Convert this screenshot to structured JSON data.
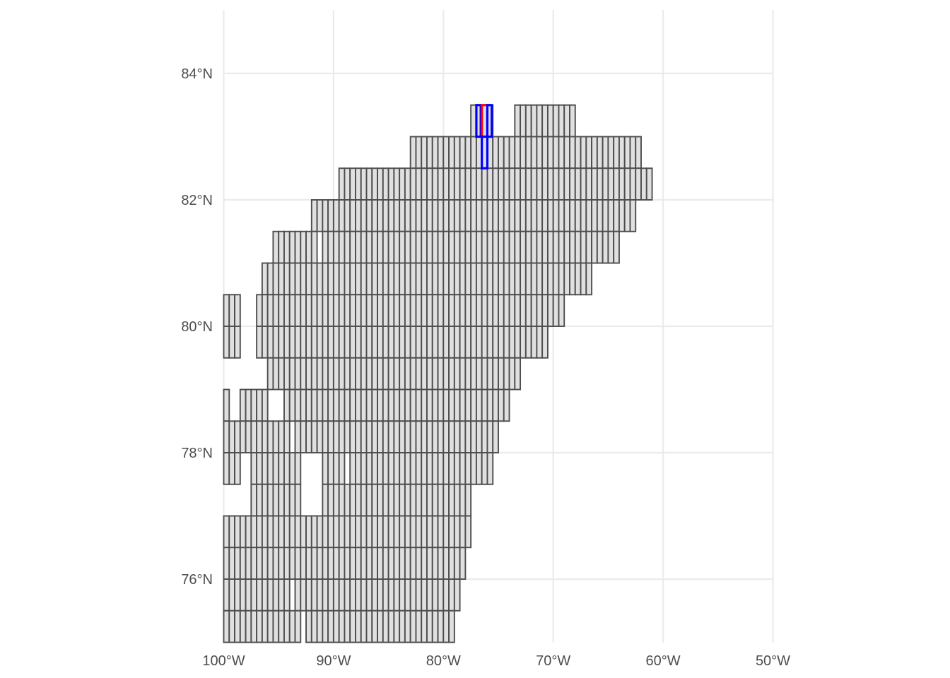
{
  "map": {
    "projection": "equirectangular",
    "lon_range": [
      -100,
      -50
    ],
    "lat_range": [
      75,
      85
    ],
    "x_ticks": [
      {
        "lon": -100,
        "label": "100°W"
      },
      {
        "lon": -90,
        "label": "90°W"
      },
      {
        "lon": -80,
        "label": "80°W"
      },
      {
        "lon": -70,
        "label": "70°W"
      },
      {
        "lon": -60,
        "label": "60°W"
      },
      {
        "lon": -50,
        "label": "50°W"
      }
    ],
    "y_ticks": [
      {
        "lat": 76,
        "label": "76°N"
      },
      {
        "lat": 78,
        "label": "78°N"
      },
      {
        "lat": 80,
        "label": "80°N"
      },
      {
        "lat": 82,
        "label": "82°N"
      },
      {
        "lat": 84,
        "label": "84°N"
      }
    ],
    "grid": true,
    "cell_lon_width": 0.5,
    "band_lat_height": 0.5,
    "colors": {
      "grid": "#ebebeb",
      "cell_fill": "#e0e0e0",
      "cell_stroke": "#4d4d4d",
      "highlight_blue": "#0000ff",
      "highlight_red": "#ff0000"
    },
    "bands": [
      {
        "lat_min": 83.0,
        "lat_max": 83.5,
        "lon_ranges": [
          [
            -77.5,
            -75.5
          ],
          [
            -73.5,
            -68.0
          ]
        ]
      },
      {
        "lat_min": 82.5,
        "lat_max": 83.0,
        "lon_ranges": [
          [
            -83.0,
            -62.0
          ]
        ]
      },
      {
        "lat_min": 82.0,
        "lat_max": 82.5,
        "lon_ranges": [
          [
            -89.5,
            -61.0
          ]
        ]
      },
      {
        "lat_min": 81.5,
        "lat_max": 82.0,
        "lon_ranges": [
          [
            -92.0,
            -62.5
          ]
        ]
      },
      {
        "lat_min": 81.0,
        "lat_max": 81.5,
        "lon_ranges": [
          [
            -95.5,
            -91.5
          ],
          [
            -91.0,
            -64.0
          ]
        ]
      },
      {
        "lat_min": 80.5,
        "lat_max": 81.0,
        "lon_ranges": [
          [
            -96.5,
            -66.5
          ]
        ]
      },
      {
        "lat_min": 80.0,
        "lat_max": 80.5,
        "lon_ranges": [
          [
            -100.0,
            -98.5
          ],
          [
            -97.0,
            -69.0
          ]
        ]
      },
      {
        "lat_min": 79.5,
        "lat_max": 80.0,
        "lon_ranges": [
          [
            -100.0,
            -98.5
          ],
          [
            -97.0,
            -70.5
          ]
        ]
      },
      {
        "lat_min": 79.0,
        "lat_max": 79.5,
        "lon_ranges": [
          [
            -96.0,
            -73.0
          ]
        ]
      },
      {
        "lat_min": 78.5,
        "lat_max": 79.0,
        "lon_ranges": [
          [
            -100.0,
            -99.5
          ],
          [
            -98.5,
            -96.0
          ],
          [
            -94.5,
            -74.0
          ]
        ]
      },
      {
        "lat_min": 78.0,
        "lat_max": 78.5,
        "lon_ranges": [
          [
            -100.0,
            -94.0
          ],
          [
            -93.5,
            -75.0
          ]
        ]
      },
      {
        "lat_min": 77.5,
        "lat_max": 78.0,
        "lon_ranges": [
          [
            -100.0,
            -98.5
          ],
          [
            -97.5,
            -93.0
          ],
          [
            -91.0,
            -89.0
          ],
          [
            -88.5,
            -75.5
          ]
        ]
      },
      {
        "lat_min": 77.0,
        "lat_max": 77.5,
        "lon_ranges": [
          [
            -97.5,
            -93.0
          ],
          [
            -91.0,
            -89.0
          ],
          [
            -89.0,
            -77.5
          ]
        ]
      },
      {
        "lat_min": 76.5,
        "lat_max": 77.0,
        "lon_ranges": [
          [
            -100.0,
            -77.5
          ]
        ]
      },
      {
        "lat_min": 76.0,
        "lat_max": 76.5,
        "lon_ranges": [
          [
            -100.0,
            -78.0
          ]
        ]
      },
      {
        "lat_min": 75.5,
        "lat_max": 76.0,
        "lon_ranges": [
          [
            -100.0,
            -94.0
          ],
          [
            -93.5,
            -78.5
          ]
        ]
      },
      {
        "lat_min": 75.0,
        "lat_max": 75.5,
        "lon_ranges": [
          [
            -100.0,
            -93.0
          ],
          [
            -92.5,
            -79.0
          ]
        ]
      }
    ],
    "highlights": [
      {
        "lat_min": 83.0,
        "lat_max": 83.5,
        "lon_min": -77.0,
        "lon_max": -76.6,
        "color": "blue"
      },
      {
        "lat_min": 83.0,
        "lat_max": 83.5,
        "lon_min": -76.5,
        "lon_max": -76.0,
        "color": "red"
      },
      {
        "lat_min": 83.0,
        "lat_max": 83.5,
        "lon_min": -76.0,
        "lon_max": -75.6,
        "color": "blue"
      },
      {
        "lat_min": 82.5,
        "lat_max": 83.0,
        "lon_min": -76.5,
        "lon_max": -76.0,
        "color": "blue"
      }
    ]
  }
}
